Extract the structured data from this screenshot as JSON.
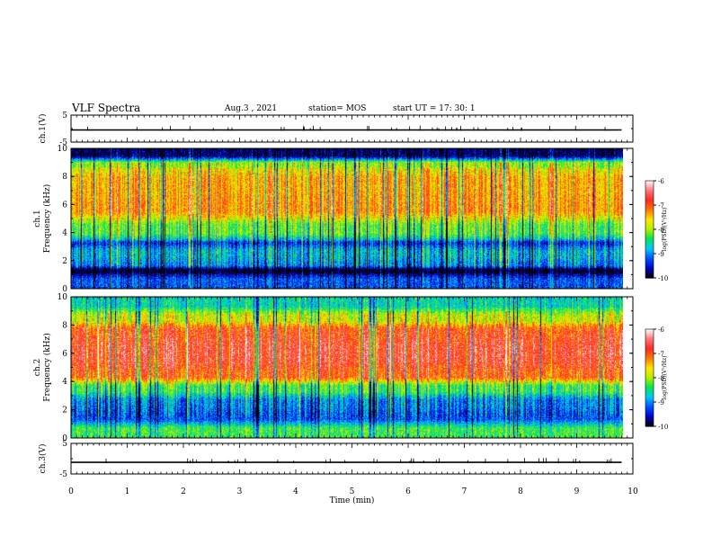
{
  "header": {
    "title": "VLF Spectra",
    "date": "Aug.3 , 2021",
    "station": "station= MOS",
    "start": "start UT = 17: 30: 1"
  },
  "colors": {
    "scale": [
      "#000000",
      "#0000c8",
      "#0050ff",
      "#00c8ff",
      "#00e650",
      "#b4f000",
      "#ffe600",
      "#ff7800",
      "#ff2828",
      "#ff7878",
      "#ffffff"
    ]
  },
  "chart_data": [
    {
      "type": "line",
      "panel": "ch1-waveform",
      "ylabel": "ch.1(V)",
      "ylim": [
        -5,
        5
      ],
      "yticks": [
        "5",
        "-5"
      ],
      "xlim": [
        0,
        10
      ],
      "series": [
        {
          "x": [
            0,
            9.8
          ],
          "values": [
            -0.5,
            -0.5
          ]
        }
      ]
    },
    {
      "type": "heatmap",
      "panel": "ch1-spectrogram",
      "ylabel": "ch.1\nFrequency (kHz)",
      "ylim": [
        0,
        10
      ],
      "yticks": [
        "0",
        "2",
        "4",
        "6",
        "8",
        "10"
      ],
      "xlim": [
        0,
        10
      ],
      "colorbar": {
        "label": "log(PSD)(V²/Hz)",
        "range": [
          -10,
          -6
        ],
        "ticks": [
          "-6",
          "-7",
          "-8",
          "-9",
          "-10"
        ]
      },
      "freq_bands_kHz": [
        0,
        1,
        1.5,
        2,
        3,
        3.5,
        5,
        6.5,
        8.5,
        9.2,
        10
      ],
      "band_log_psd": [
        -9.2,
        -10,
        -9.0,
        -8.8,
        -9.3,
        -8.2,
        -7.3,
        -7.4,
        -8.0,
        -9.8
      ]
    },
    {
      "type": "heatmap",
      "panel": "ch2-spectrogram",
      "ylabel": "ch.2\nFrequency (kHz)",
      "ylim": [
        0,
        10
      ],
      "yticks": [
        "0",
        "2",
        "4",
        "6",
        "8",
        "10"
      ],
      "xlim": [
        0,
        10
      ],
      "colorbar": {
        "label": "log(PSD)(V²/Hz)",
        "range": [
          -10,
          -6
        ],
        "ticks": [
          "-6",
          "-7",
          "-8",
          "-9",
          "-10"
        ]
      },
      "freq_bands_kHz": [
        0,
        1,
        2,
        3,
        4,
        5,
        7,
        8,
        9,
        10
      ],
      "band_log_psd": [
        -8.3,
        -9.2,
        -9.0,
        -8.3,
        -7.0,
        -6.7,
        -6.9,
        -7.8,
        -8.6
      ]
    },
    {
      "type": "line",
      "panel": "ch3-waveform",
      "ylabel": "ch.3(V)",
      "ylim": [
        -5,
        5
      ],
      "yticks": [
        "5",
        "-5"
      ],
      "xlim": [
        0,
        10
      ],
      "xlabel": "Time (min)",
      "xticks": [
        "0",
        "1",
        "2",
        "3",
        "4",
        "5",
        "6",
        "7",
        "8",
        "9",
        "10"
      ],
      "series": [
        {
          "x": [
            0,
            9.8
          ],
          "values": [
            -1.2,
            -1.2
          ]
        }
      ]
    }
  ]
}
